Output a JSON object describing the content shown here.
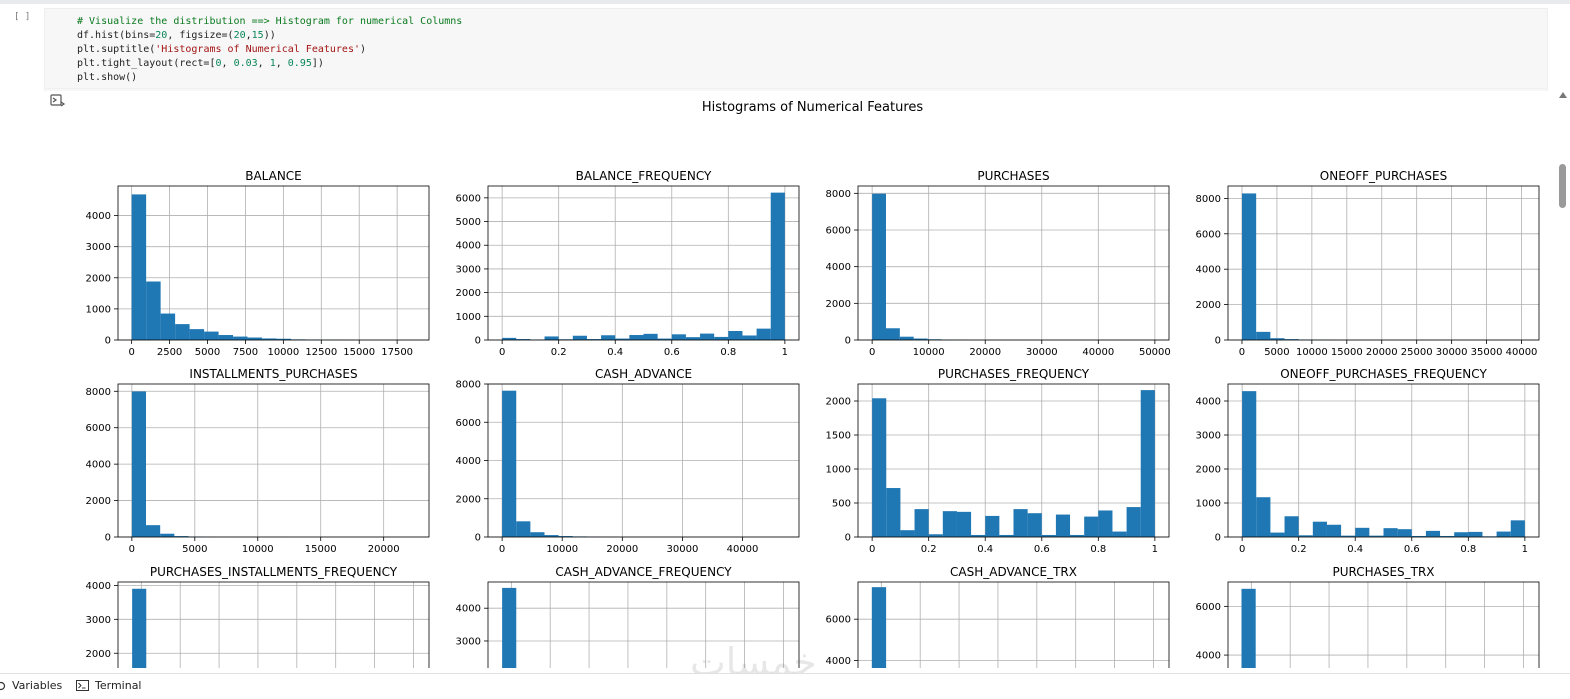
{
  "cell": {
    "run_marker": "[ ]",
    "code_lines": [
      [
        {
          "t": "# Visualize the distribution ==> Histogram for numerical Columns",
          "c": "c-com"
        }
      ],
      [
        {
          "t": "df.hist(bins=",
          "c": "c-fn"
        },
        {
          "t": "20",
          "c": "c-num"
        },
        {
          "t": ", figsize=(",
          "c": "c-fn"
        },
        {
          "t": "20",
          "c": "c-num"
        },
        {
          "t": ",",
          "c": "c-fn"
        },
        {
          "t": "15",
          "c": "c-num"
        },
        {
          "t": "))",
          "c": "c-fn"
        }
      ],
      [
        {
          "t": "plt.suptitle(",
          "c": "c-fn"
        },
        {
          "t": "'Histograms of Numerical Features'",
          "c": "c-str"
        },
        {
          "t": ")",
          "c": "c-fn"
        }
      ],
      [
        {
          "t": "plt.tight_layout(rect=[",
          "c": "c-fn"
        },
        {
          "t": "0",
          "c": "c-num"
        },
        {
          "t": ", ",
          "c": "c-fn"
        },
        {
          "t": "0.03",
          "c": "c-num"
        },
        {
          "t": ", ",
          "c": "c-fn"
        },
        {
          "t": "1",
          "c": "c-num"
        },
        {
          "t": ", ",
          "c": "c-fn"
        },
        {
          "t": "0.95",
          "c": "c-num"
        },
        {
          "t": "])",
          "c": "c-fn"
        }
      ],
      [
        {
          "t": "plt.show()",
          "c": "c-fn"
        }
      ]
    ]
  },
  "output": {
    "suptitle": "Histograms of Numerical Features"
  },
  "colors": {
    "bar": "#1f77b4",
    "grid": "#b0b0b0",
    "code_bg": "#f7f7f7"
  },
  "chart_data": [
    {
      "type": "bar",
      "title": "BALANCE",
      "xlim": [
        -900,
        19600
      ],
      "ylim": [
        0,
        4950
      ],
      "xticks": [
        0,
        2500,
        5000,
        7500,
        10000,
        12500,
        15000,
        17500
      ],
      "yticks": [
        0,
        1000,
        2000,
        3000,
        4000
      ],
      "bins": [
        [
          0,
          4680
        ],
        [
          955,
          1880
        ],
        [
          1910,
          850
        ],
        [
          2865,
          510
        ],
        [
          3820,
          350
        ],
        [
          4775,
          270
        ],
        [
          5730,
          160
        ],
        [
          6685,
          110
        ],
        [
          7640,
          80
        ],
        [
          8595,
          50
        ],
        [
          9550,
          40
        ],
        [
          10505,
          20
        ],
        [
          11460,
          15
        ],
        [
          12415,
          8
        ],
        [
          13370,
          6
        ],
        [
          14325,
          4
        ],
        [
          15280,
          3
        ],
        [
          16235,
          2
        ],
        [
          17190,
          2
        ],
        [
          18145,
          1
        ]
      ],
      "bin_width": 955
    },
    {
      "type": "bar",
      "title": "BALANCE_FREQUENCY",
      "xlim": [
        -0.05,
        1.05
      ],
      "ylim": [
        0,
        6500
      ],
      "xticks": [
        0.0,
        0.2,
        0.4,
        0.6,
        0.8,
        1.0
      ],
      "yticks": [
        0,
        1000,
        2000,
        3000,
        4000,
        5000,
        6000
      ],
      "bins": [
        [
          0,
          90
        ],
        [
          0.05,
          40
        ],
        [
          0.1,
          20
        ],
        [
          0.15,
          150
        ],
        [
          0.2,
          30
        ],
        [
          0.25,
          180
        ],
        [
          0.3,
          40
        ],
        [
          0.35,
          200
        ],
        [
          0.4,
          60
        ],
        [
          0.45,
          210
        ],
        [
          0.5,
          260
        ],
        [
          0.55,
          60
        ],
        [
          0.6,
          240
        ],
        [
          0.65,
          120
        ],
        [
          0.7,
          270
        ],
        [
          0.75,
          130
        ],
        [
          0.8,
          380
        ],
        [
          0.85,
          190
        ],
        [
          0.9,
          480
        ],
        [
          0.95,
          6220
        ]
      ],
      "bin_width": 0.05
    },
    {
      "type": "bar",
      "title": "PURCHASES",
      "xlim": [
        -2500,
        52500
      ],
      "ylim": [
        0,
        8400
      ],
      "xticks": [
        0,
        10000,
        20000,
        30000,
        40000,
        50000
      ],
      "yticks": [
        0,
        2000,
        4000,
        6000,
        8000
      ],
      "bins": [
        [
          0,
          7980
        ],
        [
          2450,
          640
        ],
        [
          4900,
          180
        ],
        [
          7350,
          80
        ],
        [
          9800,
          40
        ],
        [
          12250,
          20
        ],
        [
          14700,
          10
        ],
        [
          17150,
          5
        ],
        [
          19600,
          4
        ],
        [
          22050,
          3
        ],
        [
          24500,
          2
        ],
        [
          26950,
          2
        ],
        [
          29400,
          1
        ],
        [
          31850,
          1
        ],
        [
          34300,
          1
        ],
        [
          36750,
          1
        ],
        [
          39200,
          0
        ],
        [
          41650,
          1
        ],
        [
          44100,
          0
        ],
        [
          46550,
          1
        ]
      ],
      "bin_width": 2450
    },
    {
      "type": "bar",
      "title": "ONEOFF_PURCHASES",
      "xlim": [
        -2000,
        42500
      ],
      "ylim": [
        0,
        8700
      ],
      "xticks": [
        0,
        5000,
        10000,
        15000,
        20000,
        25000,
        30000,
        35000,
        40000
      ],
      "yticks": [
        0,
        2000,
        4000,
        6000,
        8000
      ],
      "bins": [
        [
          0,
          8280
        ],
        [
          2030,
          460
        ],
        [
          4060,
          100
        ],
        [
          6090,
          50
        ],
        [
          8120,
          25
        ],
        [
          10150,
          15
        ],
        [
          12180,
          8
        ],
        [
          14210,
          5
        ],
        [
          16240,
          4
        ],
        [
          18270,
          3
        ],
        [
          20300,
          2
        ],
        [
          22330,
          2
        ],
        [
          24360,
          1
        ],
        [
          26390,
          1
        ],
        [
          28420,
          1
        ],
        [
          30450,
          1
        ],
        [
          32480,
          0
        ],
        [
          34510,
          1
        ],
        [
          36540,
          0
        ],
        [
          38570,
          1
        ]
      ],
      "bin_width": 2030
    },
    {
      "type": "bar",
      "title": "INSTALLMENTS_PURCHASES",
      "xlim": [
        -1100,
        23600
      ],
      "ylim": [
        0,
        8400
      ],
      "xticks": [
        0,
        5000,
        10000,
        15000,
        20000
      ],
      "yticks": [
        0,
        2000,
        4000,
        6000,
        8000
      ],
      "bins": [
        [
          0,
          7990
        ],
        [
          1125,
          650
        ],
        [
          2250,
          180
        ],
        [
          3375,
          50
        ],
        [
          4500,
          25
        ],
        [
          5625,
          12
        ],
        [
          6750,
          7
        ],
        [
          7875,
          4
        ],
        [
          9000,
          3
        ],
        [
          10125,
          2
        ],
        [
          11250,
          2
        ],
        [
          12375,
          1
        ],
        [
          13500,
          1
        ],
        [
          14625,
          1
        ],
        [
          15750,
          1
        ],
        [
          16875,
          0
        ],
        [
          18000,
          1
        ],
        [
          19125,
          0
        ],
        [
          20250,
          0
        ],
        [
          21375,
          1
        ]
      ],
      "bin_width": 1125
    },
    {
      "type": "bar",
      "title": "CASH_ADVANCE",
      "xlim": [
        -2350,
        49400
      ],
      "ylim": [
        0,
        8000
      ],
      "xticks": [
        0,
        10000,
        20000,
        30000,
        40000
      ],
      "yticks": [
        0,
        2000,
        4000,
        6000,
        8000
      ],
      "bins": [
        [
          0,
          7650
        ],
        [
          2350,
          820
        ],
        [
          4700,
          250
        ],
        [
          7050,
          100
        ],
        [
          9400,
          50
        ],
        [
          11750,
          30
        ],
        [
          14100,
          15
        ],
        [
          16450,
          8
        ],
        [
          18800,
          5
        ],
        [
          21150,
          4
        ],
        [
          23500,
          3
        ],
        [
          25850,
          2
        ],
        [
          28200,
          2
        ],
        [
          30550,
          1
        ],
        [
          32900,
          1
        ],
        [
          35250,
          1
        ],
        [
          37600,
          1
        ],
        [
          39950,
          0
        ],
        [
          42300,
          0
        ],
        [
          44650,
          1
        ]
      ],
      "bin_width": 2350
    },
    {
      "type": "bar",
      "title": "PURCHASES_FREQUENCY",
      "xlim": [
        -0.05,
        1.05
      ],
      "ylim": [
        0,
        2250
      ],
      "xticks": [
        0.0,
        0.2,
        0.4,
        0.6,
        0.8,
        1.0
      ],
      "yticks": [
        0,
        500,
        1000,
        1500,
        2000
      ],
      "bins": [
        [
          0,
          2040
        ],
        [
          0.05,
          720
        ],
        [
          0.1,
          100
        ],
        [
          0.15,
          410
        ],
        [
          0.2,
          40
        ],
        [
          0.25,
          380
        ],
        [
          0.3,
          370
        ],
        [
          0.35,
          30
        ],
        [
          0.4,
          310
        ],
        [
          0.45,
          30
        ],
        [
          0.5,
          410
        ],
        [
          0.55,
          350
        ],
        [
          0.6,
          30
        ],
        [
          0.65,
          330
        ],
        [
          0.7,
          30
        ],
        [
          0.75,
          300
        ],
        [
          0.8,
          390
        ],
        [
          0.85,
          80
        ],
        [
          0.9,
          440
        ],
        [
          0.95,
          2160
        ]
      ],
      "bin_width": 0.05
    },
    {
      "type": "bar",
      "title": "ONEOFF_PURCHASES_FREQUENCY",
      "xlim": [
        -0.05,
        1.05
      ],
      "ylim": [
        0,
        4500
      ],
      "xticks": [
        0.0,
        0.2,
        0.4,
        0.6,
        0.8,
        1.0
      ],
      "yticks": [
        0,
        1000,
        2000,
        3000,
        4000
      ],
      "bins": [
        [
          0,
          4290
        ],
        [
          0.05,
          1170
        ],
        [
          0.1,
          130
        ],
        [
          0.15,
          610
        ],
        [
          0.2,
          50
        ],
        [
          0.25,
          450
        ],
        [
          0.3,
          360
        ],
        [
          0.35,
          40
        ],
        [
          0.4,
          270
        ],
        [
          0.45,
          40
        ],
        [
          0.5,
          260
        ],
        [
          0.55,
          230
        ],
        [
          0.6,
          30
        ],
        [
          0.65,
          180
        ],
        [
          0.7,
          30
        ],
        [
          0.75,
          140
        ],
        [
          0.8,
          150
        ],
        [
          0.85,
          20
        ],
        [
          0.9,
          160
        ],
        [
          0.95,
          490
        ]
      ],
      "bin_width": 0.05
    },
    {
      "type": "bar",
      "title": "PURCHASES_INSTALLMENTS_FREQUENCY",
      "xlim": [
        -0.05,
        1.05
      ],
      "ylim": [
        1300,
        4100
      ],
      "xticks": [],
      "yticks": [
        2000,
        3000,
        4000
      ],
      "bins": [
        [
          0,
          3900
        ]
      ],
      "bin_width": 0.05
    },
    {
      "type": "bar",
      "title": "CASH_ADVANCE_FREQUENCY",
      "xlim": [
        -0.075,
        1.575
      ],
      "ylim": [
        1900,
        4800
      ],
      "xticks": [],
      "yticks": [
        3000,
        4000
      ],
      "bins": [
        [
          0,
          4620
        ]
      ],
      "bin_width": 0.075
    },
    {
      "type": "bar",
      "title": "CASH_ADVANCE_TRX",
      "xlim": [
        -6,
        129
      ],
      "ylim": [
        3200,
        7800
      ],
      "xticks": [],
      "yticks": [
        4000,
        6000
      ],
      "bins": [
        [
          0,
          7550
        ]
      ],
      "bin_width": 6.2
    },
    {
      "type": "bar",
      "title": "PURCHASES_TRX",
      "xlim": [
        -17,
        375
      ],
      "ylim": [
        3100,
        7000
      ],
      "xticks": [],
      "yticks": [
        4000,
        6000
      ],
      "bins": [
        [
          0,
          6720
        ]
      ],
      "bin_width": 17.9
    }
  ],
  "statusbar": {
    "variables": "Variables",
    "terminal": "Terminal"
  },
  "watermark": "خمسات"
}
